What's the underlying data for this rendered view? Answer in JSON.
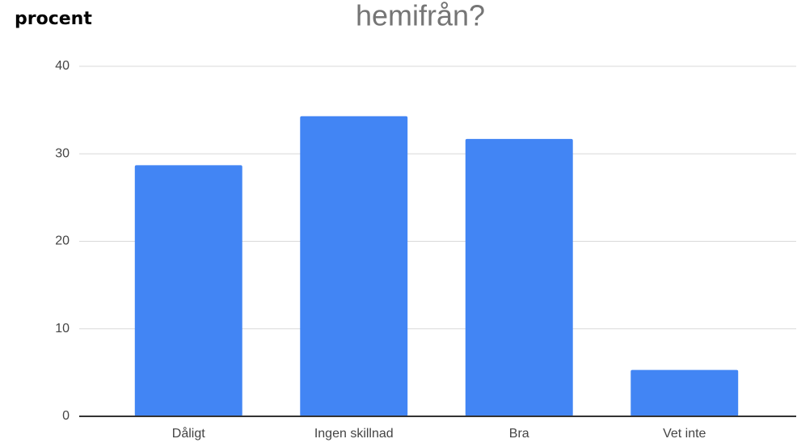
{
  "chart_data": {
    "type": "bar",
    "title": "hemifrån?",
    "y_axis_label": "procent",
    "categories": [
      "Dåligt",
      "Ingen skillnad",
      "Bra",
      "Vet inte"
    ],
    "values": [
      28.7,
      34.3,
      31.7,
      5.3
    ],
    "color": "#4285f4",
    "ylim": [
      0,
      40
    ],
    "yticks": [
      0,
      10,
      20,
      30,
      40
    ],
    "grid": true
  }
}
